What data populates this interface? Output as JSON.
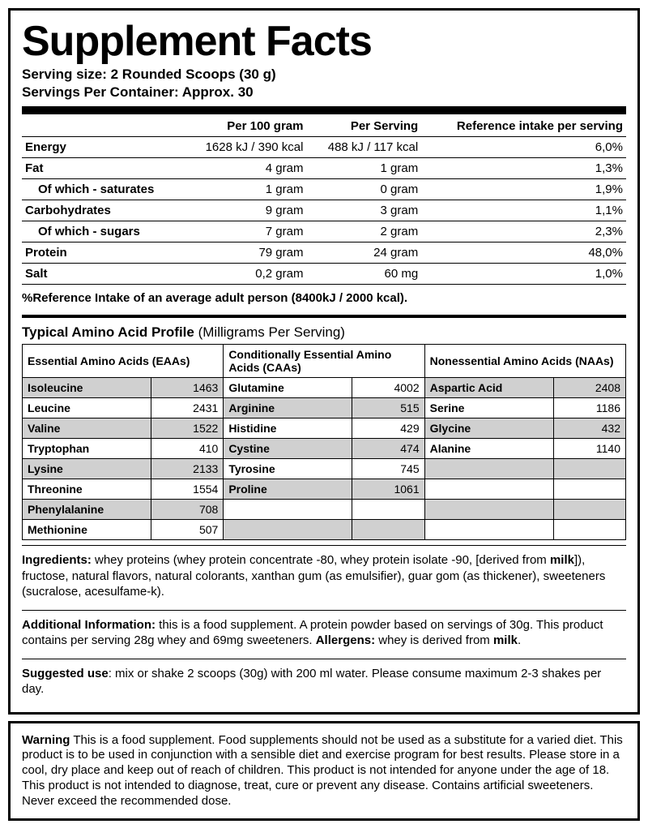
{
  "title": "Supplement Facts",
  "serving_size_label": "Serving size:",
  "serving_size_value": "2 Rounded Scoops (30 g)",
  "servings_per_label": "Servings Per Container:",
  "servings_per_value": "Approx. 30",
  "nutrition": {
    "headers": [
      "",
      "Per 100 gram",
      "Per Serving",
      "Reference intake per serving"
    ],
    "rows": [
      {
        "name": "Energy",
        "per100": "1628 kJ / 390 kcal",
        "perServing": "488 kJ / 117 kcal",
        "ri": "6,0%",
        "sub": false
      },
      {
        "name": "Fat",
        "per100": "4 gram",
        "perServing": "1 gram",
        "ri": "1,3%",
        "sub": false
      },
      {
        "name": "Of which - saturates",
        "per100": "1 gram",
        "perServing": "0 gram",
        "ri": "1,9%",
        "sub": true
      },
      {
        "name": "Carbohydrates",
        "per100": "9 gram",
        "perServing": "3 gram",
        "ri": "1,1%",
        "sub": false
      },
      {
        "name": "Of which - sugars",
        "per100": "7 gram",
        "perServing": "2 gram",
        "ri": "2,3%",
        "sub": true
      },
      {
        "name": "Protein",
        "per100": "79 gram",
        "perServing": "24 gram",
        "ri": "48,0%",
        "sub": false
      },
      {
        "name": "Salt",
        "per100": "0,2 gram",
        "perServing": "60 mg",
        "ri": "1,0%",
        "sub": false
      }
    ]
  },
  "ref_intake_line": "%Reference Intake of an average adult person (8400kJ / 2000 kcal).",
  "amino_title": "Typical Amino Acid Profile",
  "amino_subtitle": "(Milligrams Per Serving)",
  "amino_headers": [
    "Essential Amino Acids (EAAs)",
    "Conditionally Essential Amino Acids (CAAs)",
    "Nonessential Amino Acids (NAAs)"
  ],
  "amino": {
    "eaa": [
      {
        "n": "Isoleucine",
        "v": "1463"
      },
      {
        "n": "Leucine",
        "v": "2431"
      },
      {
        "n": "Valine",
        "v": "1522"
      },
      {
        "n": "Tryptophan",
        "v": "410"
      },
      {
        "n": "Lysine",
        "v": "2133"
      },
      {
        "n": "Threonine",
        "v": "1554"
      },
      {
        "n": "Phenylalanine",
        "v": "708"
      },
      {
        "n": "Methionine",
        "v": "507"
      }
    ],
    "caa": [
      {
        "n": "Glutamine",
        "v": "4002"
      },
      {
        "n": "Arginine",
        "v": "515"
      },
      {
        "n": "Histidine",
        "v": "429"
      },
      {
        "n": "Cystine",
        "v": "474"
      },
      {
        "n": "Tyrosine",
        "v": "745"
      },
      {
        "n": "Proline",
        "v": "1061"
      }
    ],
    "naa": [
      {
        "n": "Aspartic Acid",
        "v": "2408"
      },
      {
        "n": "Serine",
        "v": "1186"
      },
      {
        "n": "Glycine",
        "v": "432"
      },
      {
        "n": "Alanine",
        "v": "1140"
      }
    ]
  },
  "ingredients_label": "Ingredients:",
  "ingredients_text": " whey proteins (whey protein concentrate -80, whey protein isolate -90, [derived from ",
  "ingredients_bold1": "milk",
  "ingredients_text2": "]), fructose, natural flavors, natural colorants, xanthan gum (as emulsifier), guar gom (as thickener), sweeteners (sucralose, acesulfame-k).",
  "additional_label": "Additional Information:",
  "additional_text": " this is a food supplement. A protein powder based on servings of 30g. This product contains per serving 28g whey and 69mg sweeteners. ",
  "allergens_label": "Allergens:",
  "allergens_text": " whey is derived from ",
  "allergens_bold": "milk",
  "allergens_end": ".",
  "suggested_label": "Suggested use",
  "suggested_text": ": mix or shake 2 scoops (30g) with 200 ml water. Please consume maximum 2-3 shakes per day.",
  "warning_label": "Warning",
  "warning_text": " This is a food supplement. Food supplements should not be used as a substitute for a varied diet. This product is to be used in conjunction with a sensible diet and exercise program for best results. Please store in a cool, dry place and keep out of reach of children. This product is not intended for anyone under the age of 18. This product is not intended to diagnose, treat, cure or prevent any disease. Contains artificial sweeteners. Never exceed the recommended dose."
}
